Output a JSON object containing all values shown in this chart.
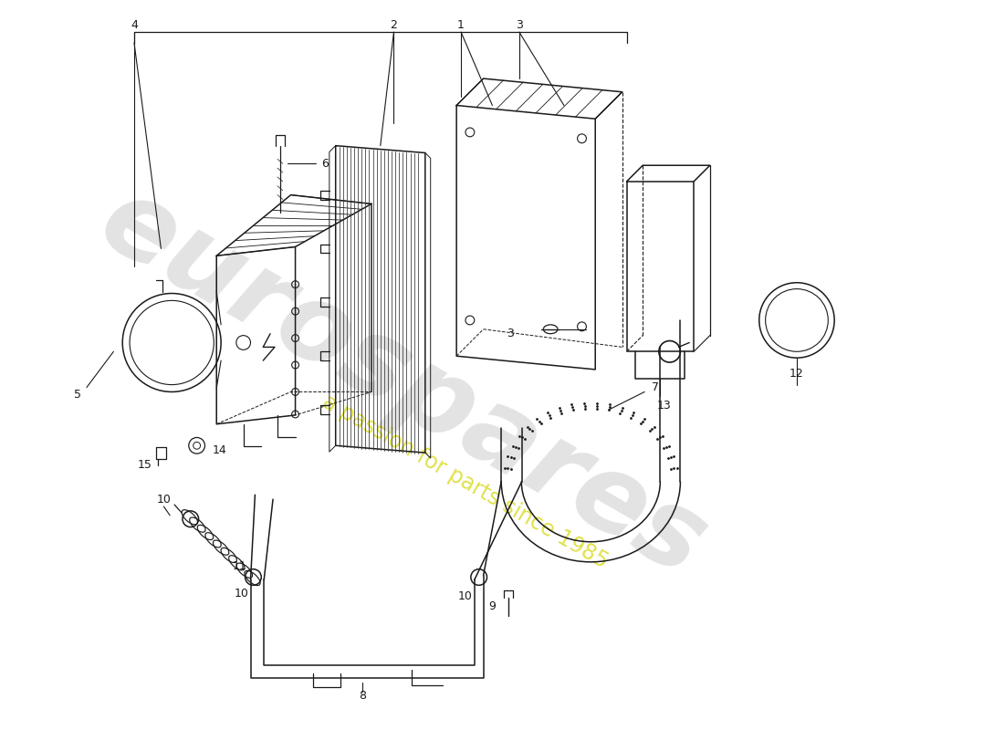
{
  "background_color": "#ffffff",
  "line_color": "#1a1a1a",
  "watermark_text1": "eurospares",
  "watermark_text2": "a passion for parts since 1985",
  "figsize": [
    11.0,
    8.0
  ],
  "dpi": 100
}
